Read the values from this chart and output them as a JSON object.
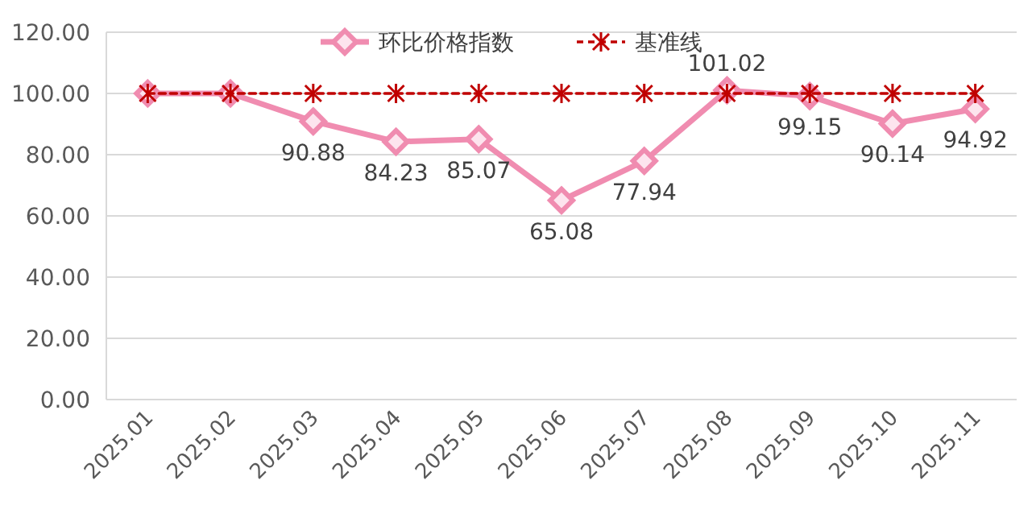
{
  "chart_data": {
    "type": "line",
    "categories": [
      "2025.01",
      "2025.02",
      "2025.03",
      "2025.04",
      "2025.05",
      "2025.06",
      "2025.07",
      "2025.08",
      "2025.09",
      "2025.10",
      "2025.11"
    ],
    "series": [
      {
        "name": "环比价格指数",
        "color": "#f08cb0",
        "marker": "diamond",
        "line_style": "solid",
        "values": [
          100,
          100,
          90.88,
          84.23,
          85.07,
          65.08,
          77.94,
          101.02,
          99.15,
          90.14,
          94.92
        ],
        "value_labels": [
          null,
          null,
          "90.88",
          "84.23",
          "85.07",
          "65.08",
          "77.94",
          "101.02",
          "99.15",
          "90.14",
          "94.92"
        ]
      },
      {
        "name": "基准线",
        "color": "#c00000",
        "marker": "cross",
        "line_style": "dashed",
        "values": [
          100,
          100,
          100,
          100,
          100,
          100,
          100,
          100,
          100,
          100,
          100
        ]
      }
    ],
    "ylim": [
      0,
      120
    ],
    "yticks": [
      {
        "value": 0,
        "label": "0.00"
      },
      {
        "value": 20,
        "label": "20.00"
      },
      {
        "value": 40,
        "label": "40.00"
      },
      {
        "value": 60,
        "label": "60.00"
      },
      {
        "value": 80,
        "label": "80.00"
      },
      {
        "value": 100,
        "label": "100.00"
      },
      {
        "value": 120,
        "label": "120.00"
      }
    ],
    "grid": "y",
    "legend": "top"
  }
}
